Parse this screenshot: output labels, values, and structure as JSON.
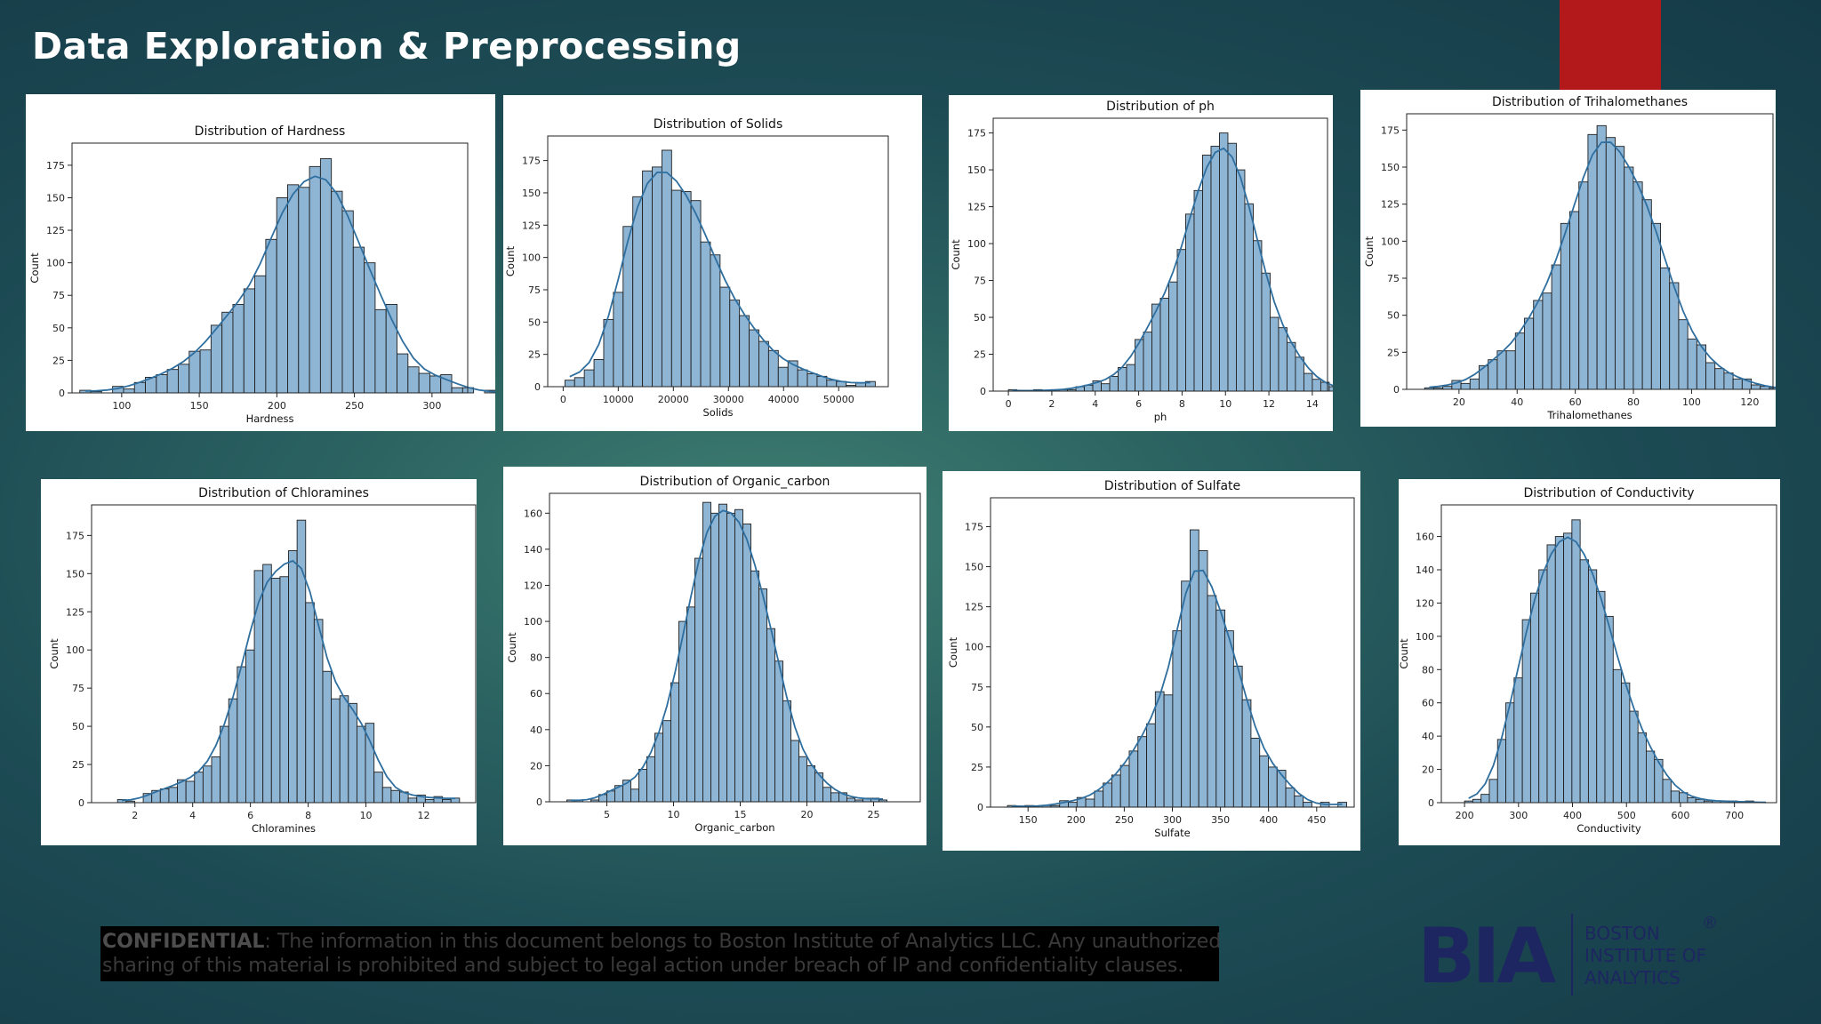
{
  "slide": {
    "title": "Data Exploration & Preprocessing",
    "confidential_label": "CONFIDENTIAL",
    "confidential_line1": ": The information in this document belongs to Boston Institute of Analytics LLC. Any unauthorized",
    "confidential_line2": "sharing of this material is prohibited and subject to legal action under breach of IP and confidentiality clauses.",
    "logo_mark": "BIA",
    "logo_line1": "BOSTON",
    "logo_line2": "INSTITUTE OF",
    "logo_line3": "ANALYTICS",
    "logo_reg": "®",
    "accent_color": "#b3191b",
    "bar_color": "#8fb5d5",
    "kde_color": "#2f6f9f"
  },
  "chart_data": [
    {
      "type": "bar",
      "title": "Distribution of Hardness",
      "xlabel": "Hardness",
      "ylabel": "Count",
      "xlim": [
        68,
        323
      ],
      "ylim": [
        0,
        192
      ],
      "xticks": [
        100,
        150,
        200,
        250,
        300
      ],
      "yticks": [
        0,
        25,
        50,
        75,
        100,
        125,
        150,
        175
      ],
      "bins": {
        "start": 73,
        "width": 7.05
      },
      "values": [
        2,
        1,
        0,
        5,
        3,
        8,
        12,
        14,
        18,
        22,
        32,
        33,
        52,
        62,
        68,
        80,
        90,
        118,
        150,
        160,
        158,
        174,
        180,
        155,
        140,
        112,
        100,
        64,
        68,
        30,
        20,
        15,
        13,
        14,
        4,
        4,
        0,
        2,
        0,
        0
      ]
    },
    {
      "type": "bar",
      "title": "Distribution of Solids",
      "xlabel": "Solids",
      "ylabel": "Count",
      "xlim": [
        -2800,
        59000
      ],
      "ylim": [
        0,
        194
      ],
      "xticks": [
        0,
        10000,
        20000,
        30000,
        40000,
        50000
      ],
      "yticks": [
        0,
        25,
        50,
        75,
        100,
        125,
        150,
        175
      ],
      "bins": {
        "start": 320,
        "width": 1760
      },
      "values": [
        5,
        7,
        13,
        21,
        52,
        73,
        124,
        147,
        167,
        170,
        183,
        152,
        151,
        144,
        112,
        102,
        77,
        67,
        55,
        44,
        35,
        28,
        15,
        20,
        13,
        10,
        8,
        5,
        4,
        1,
        3,
        4
      ]
    },
    {
      "type": "bar",
      "title": "Distribution of ph",
      "xlabel": "ph",
      "ylabel": "Count",
      "xlim": [
        -0.7,
        14.7
      ],
      "ylim": [
        0,
        185
      ],
      "xticks": [
        0,
        2,
        4,
        6,
        8,
        10,
        12,
        14
      ],
      "yticks": [
        0,
        25,
        50,
        75,
        100,
        125,
        150,
        175
      ],
      "bins": {
        "start": 0,
        "width": 0.3889
      },
      "values": [
        1,
        0,
        0,
        1,
        0,
        1,
        1,
        1,
        3,
        4,
        7,
        5,
        10,
        16,
        18,
        35,
        40,
        59,
        63,
        74,
        96,
        120,
        136,
        160,
        166,
        175,
        168,
        150,
        127,
        102,
        80,
        50,
        43,
        33,
        23,
        12,
        8,
        6,
        3,
        0,
        1,
        1,
        0,
        0,
        0,
        0
      ]
    },
    {
      "type": "bar",
      "title": "Distribution of Trihalomethanes",
      "xlabel": "Trihalomethanes",
      "ylabel": "Count",
      "xlim": [
        2,
        128
      ],
      "ylim": [
        0,
        186
      ],
      "xticks": [
        20,
        40,
        60,
        80,
        100,
        120
      ],
      "yticks": [
        0,
        25,
        50,
        75,
        100,
        125,
        150,
        175
      ],
      "bins": {
        "start": 8.2,
        "width": 3.12
      },
      "values": [
        1,
        1,
        2,
        6,
        4,
        7,
        16,
        20,
        26,
        26,
        38,
        48,
        60,
        65,
        84,
        112,
        120,
        140,
        172,
        178,
        170,
        164,
        150,
        140,
        128,
        112,
        82,
        72,
        47,
        34,
        30,
        18,
        14,
        11,
        7,
        7,
        3,
        2,
        1,
        0
      ]
    },
    {
      "type": "bar",
      "title": "Distribution of Chloramines",
      "xlabel": "Chloramines",
      "ylabel": "Count",
      "xlim": [
        0.5,
        13.8
      ],
      "ylim": [
        0,
        195
      ],
      "xticks": [
        2,
        4,
        6,
        8,
        10,
        12
      ],
      "yticks": [
        0,
        25,
        50,
        75,
        100,
        125,
        150,
        175
      ],
      "bins": {
        "start": 1.4,
        "width": 0.296
      },
      "values": [
        2,
        1,
        0,
        6,
        8,
        9,
        10,
        15,
        14,
        20,
        24,
        30,
        50,
        68,
        89,
        100,
        152,
        156,
        147,
        148,
        165,
        185,
        131,
        120,
        86,
        68,
        70,
        65,
        50,
        52,
        20,
        10,
        8,
        7,
        3,
        5,
        2,
        4,
        2,
        3
      ]
    },
    {
      "type": "bar",
      "title": "Distribution of Organic_carbon",
      "xlabel": "Organic_carbon",
      "ylabel": "Count",
      "xlim": [
        0.7,
        28.5
      ],
      "ylim": [
        0,
        171
      ],
      "xticks": [
        5,
        10,
        15,
        20,
        25
      ],
      "yticks": [
        0,
        20,
        40,
        60,
        80,
        100,
        120,
        140,
        160
      ],
      "bins": {
        "start": 2.0,
        "width": 0.6
      },
      "values": [
        1,
        1,
        0,
        1,
        4,
        6,
        9,
        12,
        7,
        18,
        25,
        38,
        45,
        66,
        100,
        108,
        135,
        166,
        160,
        165,
        160,
        162,
        154,
        128,
        118,
        96,
        78,
        56,
        34,
        25,
        20,
        16,
        8,
        5,
        5,
        2,
        1,
        2,
        2,
        1
      ]
    },
    {
      "type": "bar",
      "title": "Distribution of Sulfate",
      "xlabel": "Sulfate",
      "ylabel": "Count",
      "xlim": [
        111,
        489
      ],
      "ylim": [
        0,
        193
      ],
      "xticks": [
        150,
        200,
        250,
        300,
        350,
        400,
        450
      ],
      "yticks": [
        0,
        25,
        50,
        75,
        100,
        125,
        150,
        175
      ],
      "bins": {
        "start": 128.6,
        "width": 9.04
      },
      "values": [
        1,
        0,
        1,
        0,
        1,
        1,
        4,
        3,
        6,
        5,
        10,
        15,
        20,
        26,
        35,
        44,
        52,
        72,
        70,
        110,
        141,
        173,
        160,
        132,
        123,
        110,
        88,
        67,
        43,
        32,
        25,
        23,
        12,
        7,
        3,
        0,
        3,
        0,
        3
      ]
    },
    {
      "type": "bar",
      "title": "Distribution of Conductivity",
      "xlabel": "Conductivity",
      "ylabel": "Count",
      "xlim": [
        157,
        778
      ],
      "ylim": [
        0,
        179
      ],
      "xticks": [
        200,
        300,
        400,
        500,
        600,
        700
      ],
      "yticks": [
        0,
        20,
        40,
        60,
        80,
        100,
        120,
        140,
        160
      ],
      "bins": {
        "start": 200,
        "width": 15.3
      },
      "values": [
        1,
        2,
        5,
        14,
        38,
        60,
        75,
        110,
        126,
        140,
        155,
        160,
        162,
        170,
        146,
        140,
        127,
        112,
        80,
        72,
        55,
        42,
        31,
        26,
        14,
        7,
        6,
        3,
        2,
        1,
        1,
        1,
        1,
        0,
        1,
        0,
        0
      ]
    }
  ]
}
